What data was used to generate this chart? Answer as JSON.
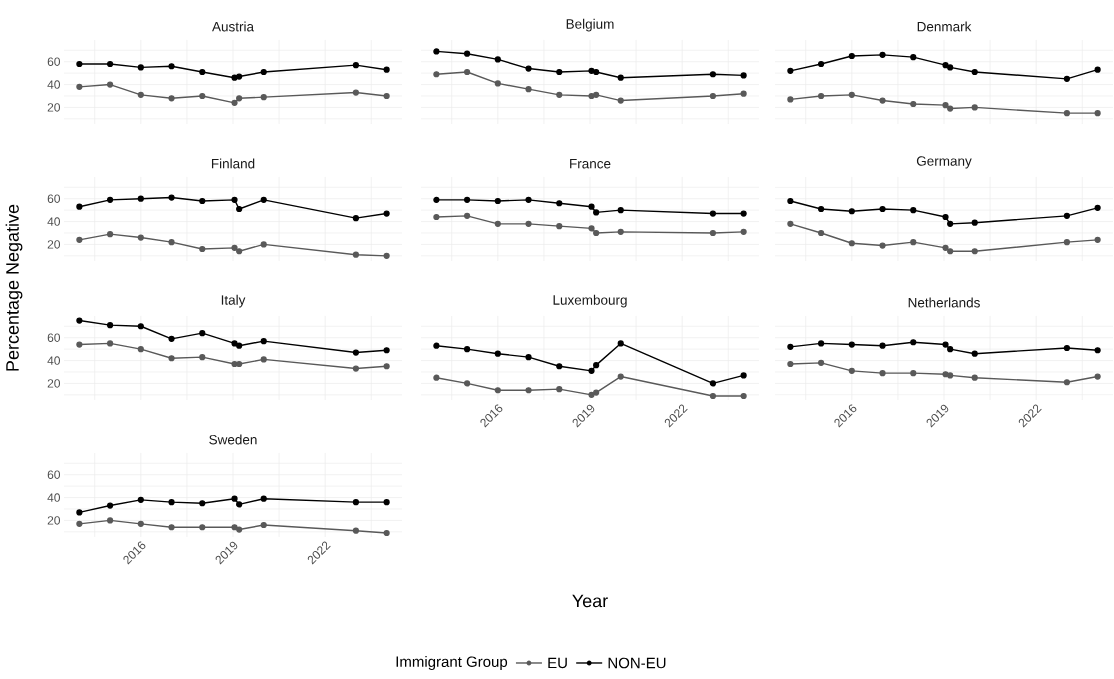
{
  "chart_data": [
    {
      "type": "line",
      "title": "Austria",
      "legend_title": "Immigrant Group",
      "legend": "bottom",
      "x": [
        2014,
        2015,
        2016,
        2017,
        2018,
        2019.05,
        2019.2,
        2020,
        2023,
        2024
      ],
      "series": [
        {
          "name": "EU",
          "color": "#595959",
          "values": [
            38,
            40,
            31,
            28,
            30,
            24,
            28,
            29,
            33,
            30
          ]
        },
        {
          "name": "NON-EU",
          "color": "#000000",
          "values": [
            58,
            58,
            55,
            56,
            51,
            46,
            47,
            51,
            57,
            53
          ]
        }
      ],
      "xlim": [
        2013.5,
        2024.5
      ],
      "ylim": [
        5.5,
        79
      ],
      "xticks": [
        {
          "value": 2014.5,
          "label": null
        },
        2016,
        {
          "value": 2017.5,
          "label": null
        },
        2019,
        {
          "value": 2020.5,
          "label": null
        },
        2022,
        {
          "value": 2023.5,
          "label": null
        }
      ],
      "yticks": [
        {
          "value": 10,
          "label": null
        },
        20,
        {
          "value": 30,
          "label": null
        },
        40,
        {
          "value": 50,
          "label": null
        },
        60,
        {
          "value": 70,
          "label": null
        }
      ],
      "grid": true,
      "marker": "circle",
      "line_style": "solid",
      "tick_labels": "y"
    },
    {
      "type": "line",
      "title": "Belgium",
      "x": [
        2014,
        2015,
        2016,
        2017,
        2018,
        2019.05,
        2019.2,
        2020,
        2023,
        2024
      ],
      "series": [
        {
          "color": "#595959",
          "values": [
            49,
            51,
            41,
            36,
            31,
            30,
            31,
            26,
            30,
            32
          ]
        },
        {
          "color": "#000000",
          "values": [
            69,
            67,
            62,
            54,
            51,
            52,
            51,
            46,
            49,
            48
          ]
        }
      ],
      "xlim": [
        2013.5,
        2024.5
      ],
      "ylim": [
        5.5,
        79
      ],
      "xticks": [
        {
          "value": 2014.5,
          "label": null
        },
        2016,
        {
          "value": 2017.5,
          "label": null
        },
        2019,
        {
          "value": 2020.5,
          "label": null
        },
        2022,
        {
          "value": 2023.5,
          "label": null
        }
      ],
      "yticks": [
        {
          "value": 10,
          "label": null
        },
        20,
        {
          "value": 30,
          "label": null
        },
        40,
        {
          "value": 50,
          "label": null
        },
        60,
        {
          "value": 70,
          "label": null
        }
      ],
      "grid": true,
      "marker": "circle",
      "line_style": "solid",
      "tick_labels": false
    },
    {
      "type": "line",
      "title": "Denmark",
      "x": [
        2014,
        2015,
        2016,
        2017,
        2018,
        2019.05,
        2019.2,
        2020,
        2023,
        2024
      ],
      "series": [
        {
          "color": "#595959",
          "values": [
            27,
            30,
            31,
            26,
            23,
            22,
            19,
            20,
            15,
            15
          ]
        },
        {
          "color": "#000000",
          "values": [
            52,
            58,
            65,
            66,
            64,
            57,
            55,
            51,
            45,
            53
          ]
        }
      ],
      "xlim": [
        2013.5,
        2024.5
      ],
      "ylim": [
        5.5,
        79
      ],
      "xticks": [
        {
          "value": 2014.5,
          "label": null
        },
        2016,
        {
          "value": 2017.5,
          "label": null
        },
        2019,
        {
          "value": 2020.5,
          "label": null
        },
        2022,
        {
          "value": 2023.5,
          "label": null
        }
      ],
      "yticks": [
        {
          "value": 10,
          "label": null
        },
        20,
        {
          "value": 30,
          "label": null
        },
        40,
        {
          "value": 50,
          "label": null
        },
        60,
        {
          "value": 70,
          "label": null
        }
      ],
      "grid": true,
      "marker": "circle",
      "line_style": "solid",
      "tick_labels": false
    },
    {
      "type": "line",
      "title": "Finland",
      "ylabel": "Percentage Negative",
      "x": [
        2014,
        2015,
        2016,
        2017,
        2018,
        2019.05,
        2019.2,
        2020,
        2023,
        2024
      ],
      "series": [
        {
          "color": "#595959",
          "values": [
            24,
            29,
            26,
            22,
            16,
            17,
            14,
            20,
            11,
            10
          ]
        },
        {
          "color": "#000000",
          "values": [
            53,
            59,
            60,
            61,
            58,
            59,
            51,
            59,
            43,
            47
          ]
        }
      ],
      "xlim": [
        2013.5,
        2024.5
      ],
      "ylim": [
        5.5,
        79
      ],
      "xticks": [
        {
          "value": 2014.5,
          "label": null
        },
        2016,
        {
          "value": 2017.5,
          "label": null
        },
        2019,
        {
          "value": 2020.5,
          "label": null
        },
        2022,
        {
          "value": 2023.5,
          "label": null
        }
      ],
      "yticks": [
        {
          "value": 10,
          "label": null
        },
        20,
        {
          "value": 30,
          "label": null
        },
        40,
        {
          "value": 50,
          "label": null
        },
        60,
        {
          "value": 70,
          "label": null
        }
      ],
      "grid": true,
      "marker": "circle",
      "line_style": "solid",
      "tick_labels": "y"
    },
    {
      "type": "line",
      "title": "France",
      "x": [
        2014,
        2015,
        2016,
        2017,
        2018,
        2019.05,
        2019.2,
        2020,
        2023,
        2024
      ],
      "series": [
        {
          "color": "#595959",
          "values": [
            44,
            45,
            38,
            38,
            36,
            34,
            30,
            31,
            30,
            31
          ]
        },
        {
          "color": "#000000",
          "values": [
            59,
            59,
            58,
            59,
            56,
            53,
            48,
            50,
            47,
            47
          ]
        }
      ],
      "xlim": [
        2013.5,
        2024.5
      ],
      "ylim": [
        5.5,
        79
      ],
      "xticks": [
        {
          "value": 2014.5,
          "label": null
        },
        2016,
        {
          "value": 2017.5,
          "label": null
        },
        2019,
        {
          "value": 2020.5,
          "label": null
        },
        2022,
        {
          "value": 2023.5,
          "label": null
        }
      ],
      "yticks": [
        {
          "value": 10,
          "label": null
        },
        20,
        {
          "value": 30,
          "label": null
        },
        40,
        {
          "value": 50,
          "label": null
        },
        60,
        {
          "value": 70,
          "label": null
        }
      ],
      "grid": true,
      "marker": "circle",
      "line_style": "solid",
      "tick_labels": false
    },
    {
      "type": "line",
      "title": "Germany",
      "x": [
        2014,
        2015,
        2016,
        2017,
        2018,
        2019.05,
        2019.2,
        2020,
        2023,
        2024
      ],
      "series": [
        {
          "color": "#595959",
          "values": [
            38,
            30,
            21,
            19,
            22,
            17,
            14,
            14,
            22,
            24
          ]
        },
        {
          "color": "#000000",
          "values": [
            58,
            51,
            49,
            51,
            50,
            44,
            38,
            39,
            45,
            52
          ]
        }
      ],
      "xlim": [
        2013.5,
        2024.5
      ],
      "ylim": [
        5.5,
        79
      ],
      "xticks": [
        {
          "value": 2014.5,
          "label": null
        },
        2016,
        {
          "value": 2017.5,
          "label": null
        },
        2019,
        {
          "value": 2020.5,
          "label": null
        },
        2022,
        {
          "value": 2023.5,
          "label": null
        }
      ],
      "yticks": [
        {
          "value": 10,
          "label": null
        },
        20,
        {
          "value": 30,
          "label": null
        },
        40,
        {
          "value": 50,
          "label": null
        },
        60,
        {
          "value": 70,
          "label": null
        }
      ],
      "grid": true,
      "marker": "circle",
      "line_style": "solid",
      "tick_labels": false
    },
    {
      "type": "line",
      "title": "Italy",
      "x": [
        2014,
        2015,
        2016,
        2017,
        2018,
        2019.05,
        2019.2,
        2020,
        2023,
        2024
      ],
      "series": [
        {
          "color": "#595959",
          "values": [
            54,
            55,
            50,
            42,
            43,
            37,
            37,
            41,
            33,
            35
          ]
        },
        {
          "color": "#000000",
          "values": [
            75,
            71,
            70,
            59,
            64,
            55,
            53,
            57,
            47,
            49
          ]
        }
      ],
      "xlim": [
        2013.5,
        2024.5
      ],
      "ylim": [
        5.5,
        79
      ],
      "xticks": [
        {
          "value": 2014.5,
          "label": null
        },
        2016,
        {
          "value": 2017.5,
          "label": null
        },
        2019,
        {
          "value": 2020.5,
          "label": null
        },
        2022,
        {
          "value": 2023.5,
          "label": null
        }
      ],
      "yticks": [
        {
          "value": 10,
          "label": null
        },
        20,
        {
          "value": 30,
          "label": null
        },
        40,
        {
          "value": 50,
          "label": null
        },
        60,
        {
          "value": 70,
          "label": null
        }
      ],
      "grid": true,
      "marker": "circle",
      "line_style": "solid",
      "tick_labels": "y"
    },
    {
      "type": "line",
      "title": "Luxembourg",
      "xlabel": "Year",
      "x": [
        2014,
        2015,
        2016,
        2017,
        2018,
        2019.05,
        2019.2,
        2020,
        2023,
        2024
      ],
      "series": [
        {
          "color": "#595959",
          "values": [
            25,
            20,
            14,
            14,
            15,
            10,
            12,
            26,
            9,
            9
          ]
        },
        {
          "color": "#000000",
          "values": [
            53,
            50,
            46,
            43,
            35,
            31,
            36,
            55,
            20,
            27
          ]
        }
      ],
      "xlim": [
        2013.5,
        2024.5
      ],
      "ylim": [
        5.5,
        79
      ],
      "xticks": [
        {
          "value": 2014.5,
          "label": null
        },
        2016,
        {
          "value": 2017.5,
          "label": null
        },
        2019,
        {
          "value": 2020.5,
          "label": null
        },
        2022,
        {
          "value": 2023.5,
          "label": null
        }
      ],
      "yticks": [
        {
          "value": 10,
          "label": null
        },
        20,
        {
          "value": 30,
          "label": null
        },
        40,
        {
          "value": 50,
          "label": null
        },
        60,
        {
          "value": 70,
          "label": null
        }
      ],
      "grid": true,
      "marker": "circle",
      "line_style": "solid",
      "tick_labels": "x"
    },
    {
      "type": "line",
      "title": "Netherlands",
      "x": [
        2014,
        2015,
        2016,
        2017,
        2018,
        2019.05,
        2019.2,
        2020,
        2023,
        2024
      ],
      "series": [
        {
          "color": "#595959",
          "values": [
            37,
            38,
            31,
            29,
            29,
            28,
            27,
            25,
            21,
            26
          ]
        },
        {
          "color": "#000000",
          "values": [
            52,
            55,
            54,
            53,
            56,
            54,
            50,
            46,
            51,
            49
          ]
        }
      ],
      "xlim": [
        2013.5,
        2024.5
      ],
      "ylim": [
        5.5,
        79
      ],
      "xticks": [
        {
          "value": 2014.5,
          "label": null
        },
        2016,
        {
          "value": 2017.5,
          "label": null
        },
        2019,
        {
          "value": 2020.5,
          "label": null
        },
        2022,
        {
          "value": 2023.5,
          "label": null
        }
      ],
      "yticks": [
        {
          "value": 10,
          "label": null
        },
        20,
        {
          "value": 30,
          "label": null
        },
        40,
        {
          "value": 50,
          "label": null
        },
        60,
        {
          "value": 70,
          "label": null
        }
      ],
      "grid": true,
      "marker": "circle",
      "line_style": "solid",
      "tick_labels": "x"
    },
    {
      "type": "line",
      "title": "Sweden",
      "x": [
        2014,
        2015,
        2016,
        2017,
        2018,
        2019.05,
        2019.2,
        2020,
        2023,
        2024
      ],
      "series": [
        {
          "color": "#595959",
          "values": [
            17,
            20,
            17,
            14,
            14,
            14,
            12,
            16,
            11,
            9
          ]
        },
        {
          "color": "#000000",
          "values": [
            27,
            33,
            38,
            36,
            35,
            39,
            34,
            39,
            36,
            36
          ]
        }
      ],
      "xlim": [
        2013.5,
        2024.5
      ],
      "ylim": [
        5.5,
        79
      ],
      "xticks": [
        {
          "value": 2014.5,
          "label": null
        },
        2016,
        {
          "value": 2017.5,
          "label": null
        },
        2019,
        {
          "value": 2020.5,
          "label": null
        },
        2022,
        {
          "value": 2023.5,
          "label": null
        }
      ],
      "yticks": [
        {
          "value": 10,
          "label": null
        },
        20,
        {
          "value": 30,
          "label": null
        },
        40,
        {
          "value": 50,
          "label": null
        },
        60,
        {
          "value": 70,
          "label": null
        }
      ],
      "grid": true,
      "marker": "circle",
      "line_style": "solid"
    }
  ]
}
